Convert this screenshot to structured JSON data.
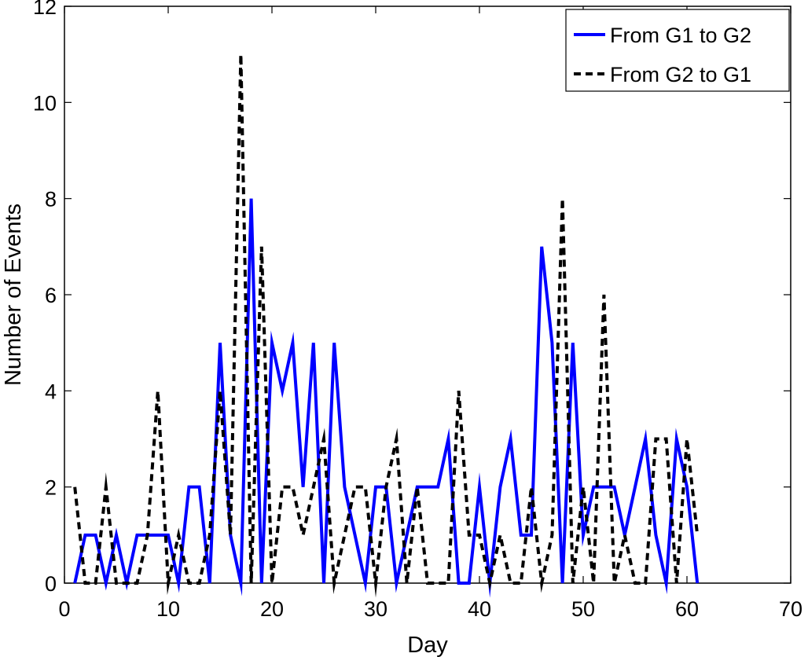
{
  "chart_data": {
    "type": "line",
    "xlabel": "Day",
    "ylabel": "Number of Events",
    "xlim": [
      0,
      70
    ],
    "ylim": [
      0,
      12
    ],
    "xticks": [
      "0",
      "10",
      "20",
      "30",
      "40",
      "50",
      "60",
      "70"
    ],
    "yticks": [
      "0",
      "2",
      "4",
      "6",
      "8",
      "10",
      "12"
    ],
    "grid": false,
    "legend_position": "top-right",
    "series": [
      {
        "name": "From G1 to G2",
        "style": "solid",
        "color": "#0000ff",
        "x": [
          1,
          2,
          3,
          4,
          5,
          6,
          7,
          8,
          9,
          10,
          11,
          12,
          13,
          14,
          15,
          16,
          17,
          18,
          19,
          20,
          21,
          22,
          23,
          24,
          25,
          26,
          27,
          28,
          29,
          30,
          31,
          32,
          33,
          34,
          35,
          36,
          37,
          38,
          39,
          40,
          41,
          42,
          43,
          44,
          45,
          46,
          47,
          48,
          49,
          50,
          51,
          52,
          53,
          54,
          55,
          56,
          57,
          58,
          59,
          60,
          61
        ],
        "y": [
          0,
          1,
          1,
          0,
          1,
          0,
          1,
          1,
          1,
          1,
          0,
          2,
          2,
          0,
          5,
          1,
          0,
          8,
          0,
          5,
          4,
          5,
          2,
          5,
          0,
          5,
          2,
          1,
          0,
          2,
          2,
          0,
          1,
          2,
          2,
          2,
          3,
          0,
          0,
          2,
          0,
          2,
          3,
          1,
          1,
          7,
          5,
          0,
          5,
          1,
          2,
          2,
          2,
          1,
          2,
          3,
          1,
          0,
          3,
          2,
          0
        ]
      },
      {
        "name": "From G2 to G1",
        "style": "dashed",
        "color": "#000000",
        "x": [
          1,
          2,
          3,
          4,
          5,
          6,
          7,
          8,
          9,
          10,
          11,
          12,
          13,
          14,
          15,
          16,
          17,
          18,
          19,
          20,
          21,
          22,
          23,
          24,
          25,
          26,
          27,
          28,
          29,
          30,
          31,
          32,
          33,
          34,
          35,
          36,
          37,
          38,
          39,
          40,
          41,
          42,
          43,
          44,
          45,
          46,
          47,
          48,
          49,
          50,
          51,
          52,
          53,
          54,
          55,
          56,
          57,
          58,
          59,
          60,
          61
        ],
        "y": [
          2,
          0,
          0,
          2,
          0,
          0,
          0,
          1,
          4,
          0,
          1,
          0,
          0,
          1,
          4,
          1,
          11,
          0,
          7,
          0,
          2,
          2,
          1,
          2,
          3,
          0,
          1,
          2,
          2,
          0,
          2,
          3,
          0,
          2,
          0,
          0,
          0,
          4,
          1,
          1,
          0,
          1,
          0,
          0,
          2,
          0,
          1,
          8,
          0,
          2,
          0,
          6,
          0,
          1,
          0,
          0,
          3,
          3,
          0,
          3,
          1
        ]
      }
    ]
  }
}
